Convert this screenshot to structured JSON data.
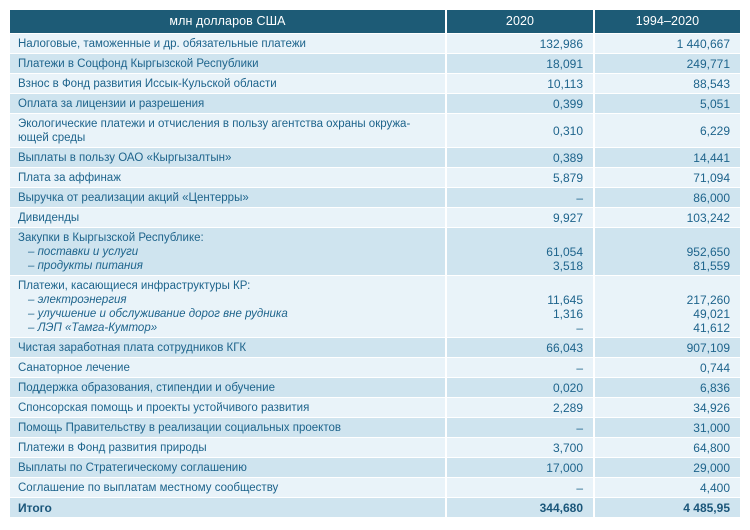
{
  "colors": {
    "header_bg": "#1d5b76",
    "header_text": "#ffffff",
    "row_light": "#e9f3f9",
    "row_dark": "#cfe4ef",
    "text": "#1e648c"
  },
  "chart_data": {
    "type": "table",
    "columns": [
      "млн долларов США",
      "2020",
      "1994–2020"
    ],
    "rows": [
      {
        "label_lines": [
          {
            "text": "Налоговые, таможенные и др. обязательные платежи",
            "italic": false
          }
        ],
        "v2020": [
          "132,986"
        ],
        "v1994_2020": [
          "1 440,667"
        ]
      },
      {
        "label_lines": [
          {
            "text": "Платежи в Соцфонд Кыргызской Республики",
            "italic": false
          }
        ],
        "v2020": [
          "18,091"
        ],
        "v1994_2020": [
          "249,771"
        ]
      },
      {
        "label_lines": [
          {
            "text": "Взнос в Фонд развития Иссык-Кульской области",
            "italic": false
          }
        ],
        "v2020": [
          "10,113"
        ],
        "v1994_2020": [
          "88,543"
        ]
      },
      {
        "label_lines": [
          {
            "text": "Оплата за лицензии и разрешения",
            "italic": false
          }
        ],
        "v2020": [
          "0,399"
        ],
        "v1994_2020": [
          "5,051"
        ]
      },
      {
        "label_lines": [
          {
            "text": "Экологические платежи и отчисления в пользу агентства охраны окружа-",
            "italic": false
          },
          {
            "text": "ющей среды",
            "italic": false
          }
        ],
        "v2020": [
          "0,310"
        ],
        "v1994_2020": [
          "6,229"
        ]
      },
      {
        "label_lines": [
          {
            "text": "Выплаты в пользу ОАО «Кыргызалтын»",
            "italic": false
          }
        ],
        "v2020": [
          "0,389"
        ],
        "v1994_2020": [
          "14,441"
        ]
      },
      {
        "label_lines": [
          {
            "text": "Плата за аффинаж",
            "italic": false
          }
        ],
        "v2020": [
          "5,879"
        ],
        "v1994_2020": [
          "71,094"
        ]
      },
      {
        "label_lines": [
          {
            "text": "Выручка от реализации акций «Центерры»",
            "italic": false
          }
        ],
        "v2020": [
          "–"
        ],
        "v1994_2020": [
          "86,000"
        ]
      },
      {
        "label_lines": [
          {
            "text": "Дивиденды",
            "italic": false
          }
        ],
        "v2020": [
          "9,927"
        ],
        "v1994_2020": [
          "103,242"
        ]
      },
      {
        "label_lines": [
          {
            "text": "Закупки в Кыргызской Республике:",
            "italic": false
          },
          {
            "text": "– поставки и услуги",
            "italic": true
          },
          {
            "text": "– продукты питания",
            "italic": true
          }
        ],
        "v2020": [
          "",
          "61,054",
          "3,518"
        ],
        "v1994_2020": [
          "",
          "952,650",
          "81,559"
        ]
      },
      {
        "label_lines": [
          {
            "text": "Платежи, касающиеся инфраструктуры КР:",
            "italic": false
          },
          {
            "text": "– электроэнергия",
            "italic": true
          },
          {
            "text": "– улучшение и обслуживание дорог вне рудника",
            "italic": true
          },
          {
            "text": "– ЛЭП «Тамга-Кумтор»",
            "italic": true
          }
        ],
        "v2020": [
          "",
          "11,645",
          "1,316",
          "–"
        ],
        "v1994_2020": [
          "",
          "217,260",
          "49,021",
          "41,612"
        ]
      },
      {
        "label_lines": [
          {
            "text": "Чистая заработная плата сотрудников КГК",
            "italic": false
          }
        ],
        "v2020": [
          "66,043"
        ],
        "v1994_2020": [
          "907,109"
        ]
      },
      {
        "label_lines": [
          {
            "text": "Санаторное лечение",
            "italic": false
          }
        ],
        "v2020": [
          "–"
        ],
        "v1994_2020": [
          "0,744"
        ]
      },
      {
        "label_lines": [
          {
            "text": "Поддержка образования, стипендии и обучение",
            "italic": false
          }
        ],
        "v2020": [
          "0,020"
        ],
        "v1994_2020": [
          "6,836"
        ]
      },
      {
        "label_lines": [
          {
            "text": "Спонсорская помощь и проекты устойчивого развития",
            "italic": false
          }
        ],
        "v2020": [
          "2,289"
        ],
        "v1994_2020": [
          "34,926"
        ]
      },
      {
        "label_lines": [
          {
            "text": "Помощь Правительству в реализации социальных проектов",
            "italic": false
          }
        ],
        "v2020": [
          "–"
        ],
        "v1994_2020": [
          "31,000"
        ]
      },
      {
        "label_lines": [
          {
            "text": "Платежи в Фонд развития природы",
            "italic": false
          }
        ],
        "v2020": [
          "3,700"
        ],
        "v1994_2020": [
          "64,800"
        ]
      },
      {
        "label_lines": [
          {
            "text": "Выплаты по Стратегическому соглашению",
            "italic": false
          }
        ],
        "v2020": [
          "17,000"
        ],
        "v1994_2020": [
          "29,000"
        ]
      },
      {
        "label_lines": [
          {
            "text": "Соглашение по выплатам местному сообществу",
            "italic": false
          }
        ],
        "v2020": [
          "–"
        ],
        "v1994_2020": [
          "4,400"
        ]
      }
    ],
    "total": {
      "label": "Итого",
      "v2020": "344,680",
      "v1994_2020": "4 485,95"
    }
  }
}
